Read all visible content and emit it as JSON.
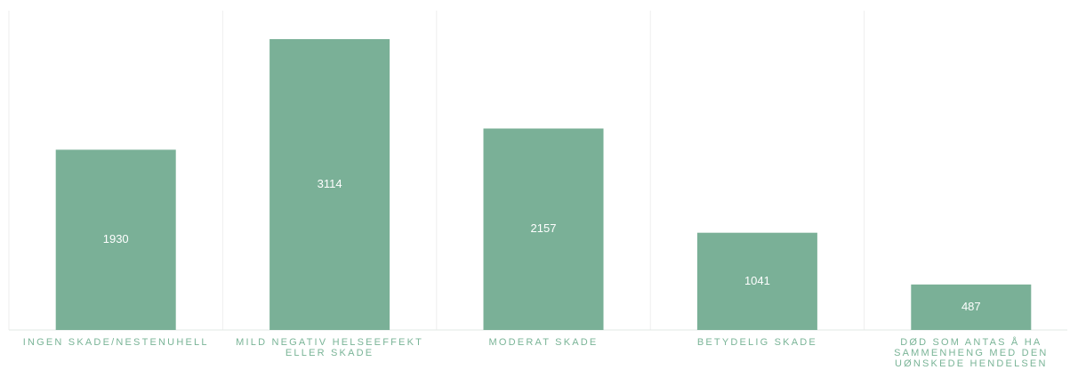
{
  "chart_data": {
    "type": "bar",
    "categories": [
      "INGEN SKADE/NESTENUHELL",
      "MILD NEGATIV HELSEEFFEKT ELLER SKADE",
      "MODERAT SKADE",
      "BETYDELIG SKADE",
      "DØD SOM ANTAS Å HA SAMMENHENG MED DEN UØNSKEDE HENDELSEN"
    ],
    "values": [
      1930,
      3114,
      2157,
      1041,
      487
    ],
    "color": "#7ab097"
  }
}
